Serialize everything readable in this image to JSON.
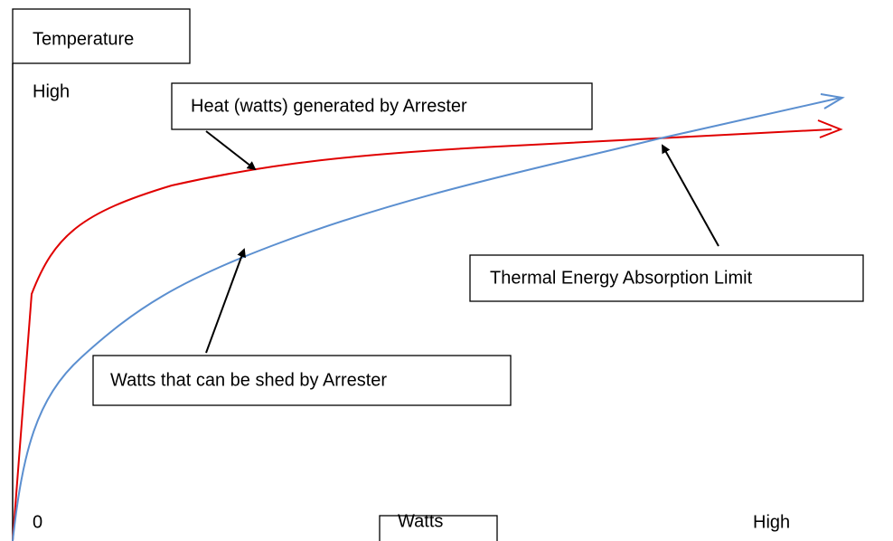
{
  "y_axis": {
    "title": "Temperature",
    "high_label": "High"
  },
  "x_axis": {
    "title": "Watts",
    "origin_label": "0",
    "high_label": "High"
  },
  "curves": [
    {
      "label": "Heat (watts) generated by Arrester",
      "color": "#e00000"
    },
    {
      "label": "Watts that can be shed by Arrester",
      "color": "#5b8fd0"
    }
  ],
  "annotation": "Thermal Energy Absorption Limit"
}
